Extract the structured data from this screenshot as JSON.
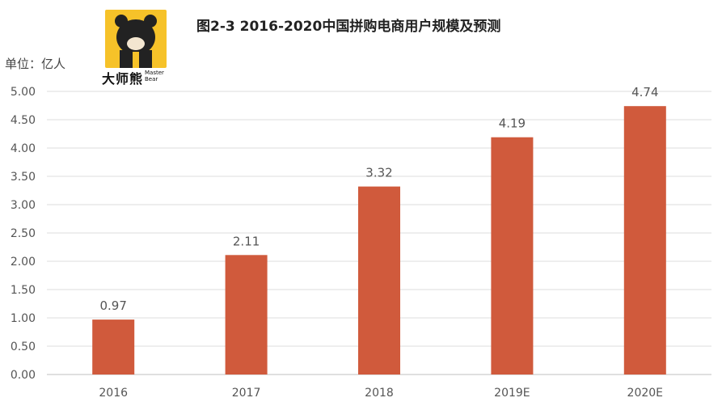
{
  "chart_data": {
    "type": "bar",
    "title": "图2-3 2016-2020中国拼购电商用户规模及预测",
    "unit_label": "单位：亿人",
    "categories": [
      "2016",
      "2017",
      "2018",
      "2019E",
      "2020E"
    ],
    "values": [
      0.97,
      2.11,
      3.32,
      4.19,
      4.74
    ],
    "data_labels": [
      "0.97",
      "2.11",
      "3.32",
      "4.19",
      "4.74"
    ],
    "yticks": [
      "0.00",
      "0.50",
      "1.00",
      "1.50",
      "2.00",
      "2.50",
      "3.00",
      "3.50",
      "4.00",
      "4.50",
      "5.00"
    ],
    "ylim": [
      0,
      5
    ],
    "grid": true,
    "bar_color": "#d05a3c"
  },
  "logo": {
    "name": "大师熊",
    "sub_line1": "Master",
    "sub_line2": "Bear"
  }
}
